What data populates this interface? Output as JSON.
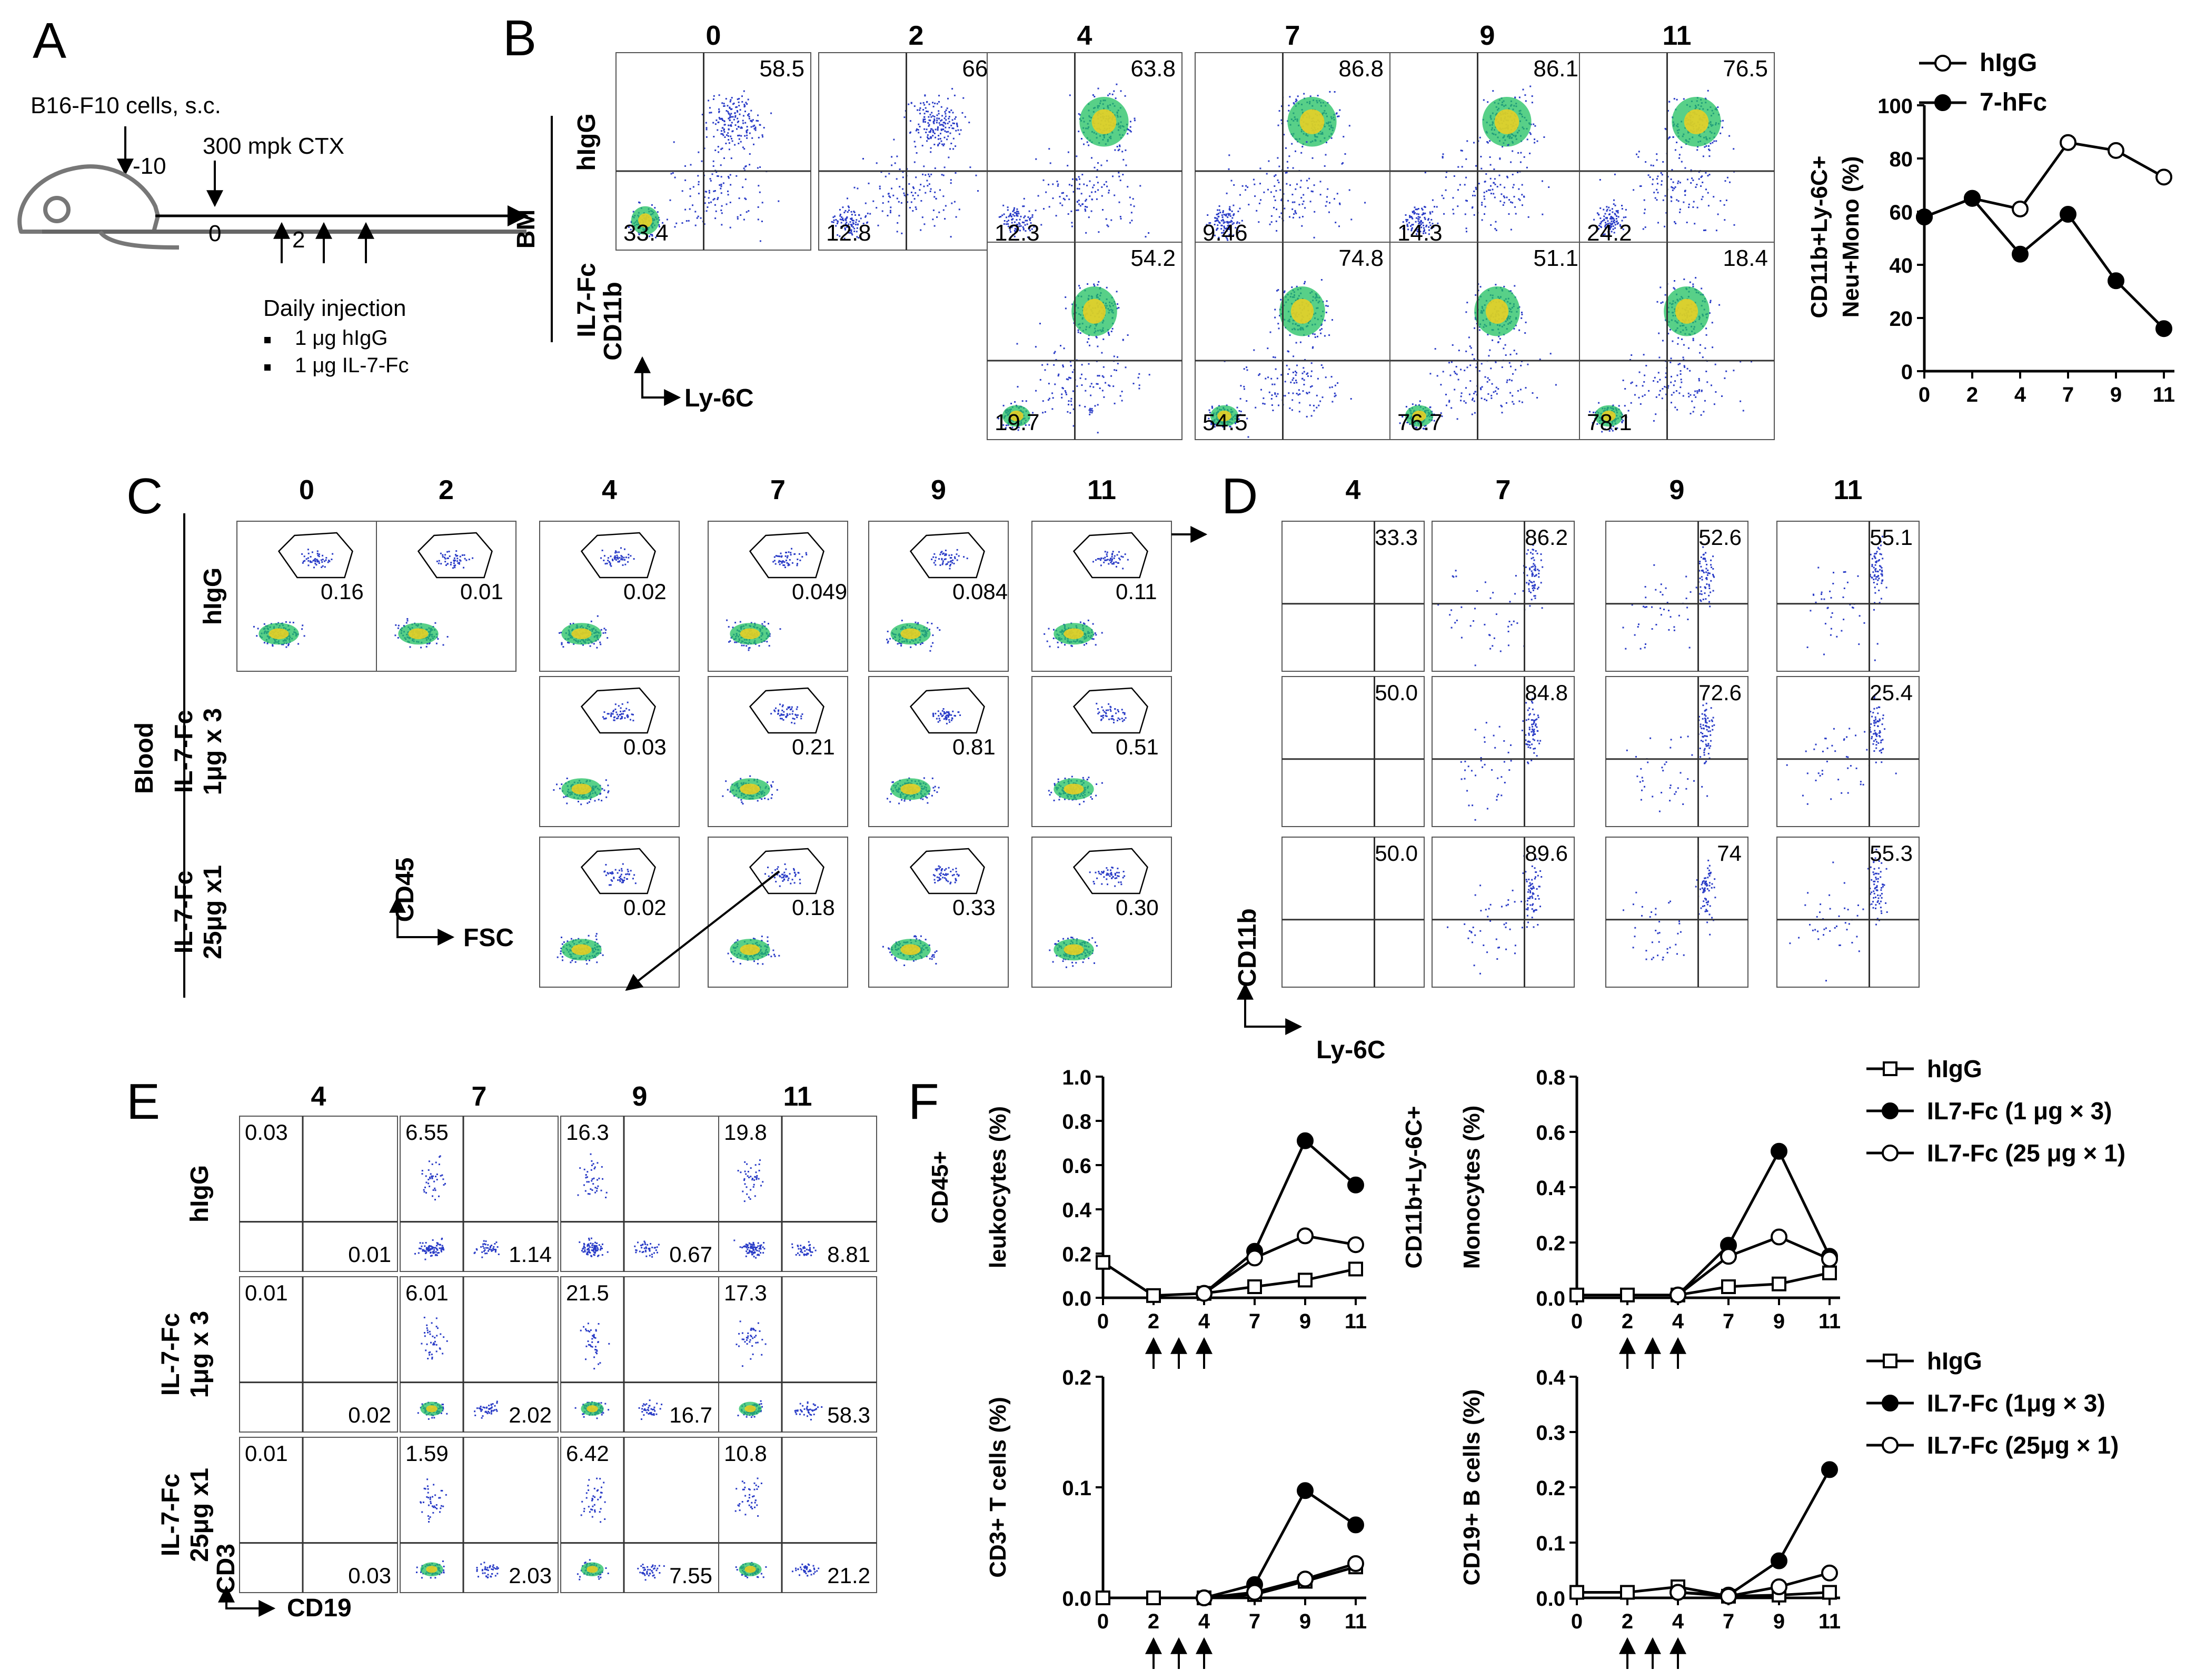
{
  "panels": {
    "A": {
      "letter": "A",
      "cells": "B16-F10 cells, s.c.",
      "day_minus": "-10",
      "ctx": "300 mpk CTX",
      "day_zero": "0",
      "day_two": "2",
      "injection_title": "Daily injection",
      "injection_items": [
        "1 μg hIgG",
        "1 μg IL-7-Fc"
      ]
    },
    "B": {
      "letter": "B",
      "days": [
        "0",
        "2",
        "4",
        "7",
        "9",
        "11"
      ],
      "tissue": "BM",
      "row_labels": [
        "hIgG",
        "IL7-Fc"
      ],
      "y_axis": "CD11b",
      "x_axis": "Ly-6C",
      "top_row": {
        "upper": [
          "58.5",
          "66.0",
          "63.8",
          "86.8",
          "86.1",
          "76.5"
        ],
        "lower": [
          "33.4",
          "12.8",
          "12.3",
          "9.46",
          "14.3",
          "24.2"
        ]
      },
      "bottom_row": {
        "upper": [
          "54.2",
          "74.8",
          "51.1",
          "18.4"
        ],
        "lower": [
          "19.7",
          "54.5",
          "76.7",
          "78.1"
        ]
      }
    },
    "B_chart": {
      "chart_data": {
        "type": "line",
        "x": [
          "0",
          "2",
          "4",
          "7",
          "9",
          "11"
        ],
        "ylabel_line1": "CD11b+Ly-6C+",
        "ylabel_line2": "Neu+Mono (%)",
        "yticks": [
          "0",
          "20",
          "40",
          "60",
          "80",
          "100"
        ],
        "ylim": [
          0,
          100
        ],
        "series": [
          {
            "name": "hIgG",
            "marker": "open",
            "values": [
              58,
              65,
              61,
              86,
              83,
              73
            ]
          },
          {
            "name": "7-hFc",
            "marker": "filled",
            "values": [
              58,
              65,
              44,
              59,
              34,
              16
            ]
          }
        ]
      }
    },
    "C": {
      "letter": "C",
      "days": [
        "0",
        "2",
        "4",
        "7",
        "9",
        "11"
      ],
      "tissue": "Blood",
      "row_labels": [
        [
          "hIgG"
        ],
        [
          "IL-7-Fc",
          "1μg x 3"
        ],
        [
          "IL-7-Fc",
          "25μg x1"
        ]
      ],
      "y_axis": "CD45",
      "x_axis": "FSC",
      "values": [
        [
          "0.16",
          "0.01",
          "0.02",
          "0.049",
          "0.084",
          "0.11"
        ],
        [
          "0.03",
          "0.21",
          "0.81",
          "0.51"
        ],
        [
          "0.02",
          "0.18",
          "0.33",
          "0.30"
        ]
      ]
    },
    "D": {
      "letter": "D",
      "days": [
        "4",
        "7",
        "9",
        "11"
      ],
      "y_axis": "CD11b",
      "x_axis": "Ly-6C",
      "values": [
        [
          "33.3",
          "86.2",
          "52.6",
          "55.1"
        ],
        [
          "50.0",
          "84.8",
          "72.6",
          "25.4"
        ],
        [
          "50.0",
          "89.6",
          "74",
          "55.3"
        ]
      ]
    },
    "E": {
      "letter": "E",
      "days": [
        "4",
        "7",
        "9",
        "11"
      ],
      "row_labels": [
        [
          "hIgG"
        ],
        [
          "IL-7-Fc",
          "1μg x 3"
        ],
        [
          "IL-7-Fc",
          "25μg x1"
        ]
      ],
      "y_axis": "CD3",
      "x_axis": "CD19",
      "upper": [
        [
          "0.03",
          "6.55",
          "16.3",
          "19.8"
        ],
        [
          "0.01",
          "6.01",
          "21.5",
          "17.3"
        ],
        [
          "0.01",
          "1.59",
          "6.42",
          "10.8"
        ]
      ],
      "lower": [
        [
          "0.01",
          "1.14",
          "0.67",
          "8.81"
        ],
        [
          "0.02",
          "2.02",
          "16.7",
          "58.3"
        ],
        [
          "0.03",
          "2.03",
          "7.55",
          "21.2"
        ]
      ]
    },
    "F": {
      "letter": "F",
      "legend_top": [
        "hIgG",
        "IL7-Fc (1 μg × 3)",
        "IL7-Fc (25 μg × 1)"
      ],
      "legend_bottom": [
        "hIgG",
        "IL7-Fc (1μg × 3)",
        "IL7-Fc (25μg × 1)"
      ],
      "chart_data": [
        {
          "type": "line",
          "ylabel": [
            "CD45+",
            "leukocytes (%)"
          ],
          "x": [
            "0",
            "2",
            "4",
            "7",
            "9",
            "11"
          ],
          "yticks": [
            "0.0",
            "0.2",
            "0.4",
            "0.6",
            "0.8",
            "1.0"
          ],
          "ylim": [
            0,
            1.0
          ],
          "series": [
            {
              "name": "hIgG",
              "marker": "square",
              "values": [
                0.16,
                0.01,
                0.02,
                0.05,
                0.08,
                0.13
              ]
            },
            {
              "name": "IL7-Fc (1 μg × 3)",
              "marker": "filled",
              "values": [
                null,
                null,
                0.02,
                0.21,
                0.71,
                0.51
              ]
            },
            {
              "name": "IL7-Fc (25 μg × 1)",
              "marker": "open",
              "values": [
                null,
                null,
                0.02,
                0.18,
                0.28,
                0.24
              ]
            }
          ]
        },
        {
          "type": "line",
          "ylabel": [
            "CD11b+Ly-6C+",
            "Monocytes (%)"
          ],
          "x": [
            "0",
            "2",
            "4",
            "7",
            "9",
            "11"
          ],
          "yticks": [
            "0.0",
            "0.2",
            "0.4",
            "0.6",
            "0.8"
          ],
          "ylim": [
            0,
            0.8
          ],
          "series": [
            {
              "name": "hIgG",
              "marker": "square",
              "values": [
                0.01,
                0.01,
                0.01,
                0.04,
                0.05,
                0.09
              ]
            },
            {
              "name": "IL7-Fc (1 μg × 3)",
              "marker": "filled",
              "values": [
                null,
                null,
                0.01,
                0.19,
                0.53,
                0.15
              ]
            },
            {
              "name": "IL7-Fc (25 μg × 1)",
              "marker": "open",
              "values": [
                null,
                null,
                0.01,
                0.15,
                0.22,
                0.14
              ]
            }
          ]
        },
        {
          "type": "line",
          "ylabel": [
            "CD3+ T cells (%)"
          ],
          "x": [
            "0",
            "2",
            "4",
            "7",
            "9",
            "11"
          ],
          "yticks": [
            "0.0",
            "0.1",
            "0.2"
          ],
          "ylim": [
            0,
            0.2
          ],
          "series": [
            {
              "name": "hIgG",
              "marker": "square",
              "values": [
                0.0,
                0.0,
                0.0,
                0.003,
                0.015,
                0.028
              ]
            },
            {
              "name": "IL7-Fc (1μg × 3)",
              "marker": "filled",
              "values": [
                null,
                null,
                0.0,
                0.012,
                0.097,
                0.066
              ]
            },
            {
              "name": "IL7-Fc (25μg × 1)",
              "marker": "open",
              "values": [
                null,
                null,
                0.0,
                0.005,
                0.017,
                0.031
              ]
            }
          ]
        },
        {
          "type": "line",
          "ylabel": [
            "CD19+ B cells (%)"
          ],
          "x": [
            "0",
            "2",
            "4",
            "7",
            "9",
            "11"
          ],
          "yticks": [
            "0.0",
            "0.1",
            "0.2",
            "0.3",
            "0.4"
          ],
          "ylim": [
            0,
            0.4
          ],
          "series": [
            {
              "name": "hIgG",
              "marker": "square",
              "values": [
                0.01,
                0.01,
                0.02,
                0.003,
                0.005,
                0.01
              ]
            },
            {
              "name": "IL7-Fc (1μg × 3)",
              "marker": "filled",
              "values": [
                null,
                null,
                0.01,
                0.005,
                0.067,
                0.232
              ]
            },
            {
              "name": "IL7-Fc (25μg × 1)",
              "marker": "open",
              "values": [
                null,
                null,
                0.01,
                0.003,
                0.02,
                0.045
              ]
            }
          ]
        }
      ]
    },
    "colors": {
      "ink": "#000000",
      "quadrant": "#333333",
      "dots": "#2a3cc7",
      "dense_core": "#20c060",
      "hot_core": "#f0d020"
    }
  }
}
